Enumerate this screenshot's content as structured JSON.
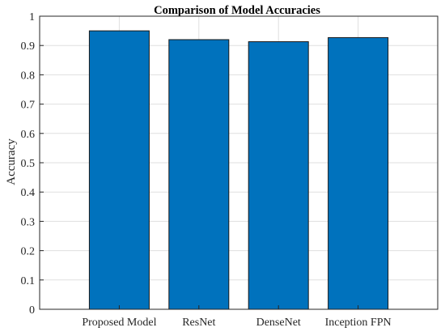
{
  "chart_data": {
    "type": "bar",
    "title": "Comparison of Model Accuracies",
    "xlabel": "",
    "ylabel": "Accuracy",
    "categories": [
      "Proposed Model",
      "ResNet",
      "DenseNet",
      "Inception FPN"
    ],
    "values": [
      0.95,
      0.92,
      0.913,
      0.927
    ],
    "ylim": [
      0,
      1
    ],
    "yticks": [
      "0",
      "0.1",
      "0.2",
      "0.3",
      "0.4",
      "0.5",
      "0.6",
      "0.7",
      "0.8",
      "0.9",
      "1"
    ],
    "grid": true,
    "legend": "none",
    "bar_color": "#0072BD"
  }
}
